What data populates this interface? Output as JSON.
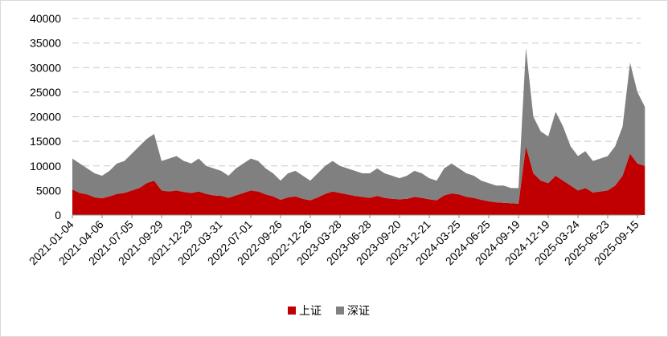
{
  "chart_data": {
    "type": "stacked-area",
    "categories": [
      "2021-01-04",
      null,
      null,
      null,
      "2021-04-06",
      null,
      null,
      null,
      "2021-07-05",
      null,
      null,
      null,
      "2021-09-29",
      null,
      null,
      null,
      "2021-12-29",
      null,
      null,
      null,
      "2022-03-31",
      null,
      null,
      null,
      "2022-07-01",
      null,
      null,
      null,
      "2022-09-26",
      null,
      null,
      null,
      "2022-12-26",
      null,
      null,
      null,
      "2023-03-28",
      null,
      null,
      null,
      "2023-06-28",
      null,
      null,
      null,
      "2023-09-20",
      null,
      null,
      null,
      "2023-12-21",
      null,
      null,
      null,
      "2024-03-25",
      null,
      null,
      null,
      "2024-06-25",
      null,
      null,
      null,
      "2024-09-19",
      null,
      null,
      null,
      "2024-12-19",
      null,
      null,
      null,
      "2025-03-24",
      null,
      null,
      null,
      "2025-06-23",
      null,
      null,
      null,
      "2025-09-15",
      null
    ],
    "series": [
      {
        "name": "上证",
        "color": "#c00000",
        "values": [
          5200,
          4500,
          4200,
          3600,
          3400,
          3800,
          4300,
          4500,
          5000,
          5500,
          6500,
          7000,
          5000,
          4800,
          5000,
          4700,
          4500,
          4800,
          4300,
          4000,
          3900,
          3500,
          4000,
          4500,
          5000,
          4800,
          4200,
          3800,
          3100,
          3600,
          3800,
          3300,
          3000,
          3600,
          4300,
          4800,
          4500,
          4200,
          3900,
          3700,
          3500,
          3900,
          3500,
          3300,
          3200,
          3300,
          3700,
          3500,
          3200,
          3000,
          4000,
          4400,
          4200,
          3700,
          3500,
          3100,
          2800,
          2600,
          2500,
          2400,
          2300,
          14000,
          8500,
          7000,
          6500,
          8000,
          7000,
          6000,
          5000,
          5500,
          4600,
          4800,
          5000,
          6000,
          8000,
          12500,
          10500,
          10000
        ]
      },
      {
        "name": "深证",
        "color": "#808080",
        "values": [
          6300,
          6000,
          5300,
          4900,
          4600,
          5200,
          6200,
          6500,
          7500,
          8500,
          9000,
          9500,
          6000,
          6700,
          7000,
          6300,
          6000,
          6700,
          5700,
          5500,
          5100,
          4500,
          5500,
          6000,
          6500,
          6200,
          5300,
          4700,
          3900,
          4900,
          5200,
          4700,
          4000,
          4900,
          5700,
          6200,
          5500,
          5300,
          5100,
          4800,
          5000,
          5600,
          5000,
          4700,
          4300,
          4700,
          5300,
          5000,
          4300,
          4000,
          5500,
          6100,
          5300,
          4800,
          4500,
          3900,
          3700,
          3400,
          3500,
          3100,
          3200,
          20000,
          11500,
          10000,
          9500,
          13000,
          11000,
          8000,
          7000,
          7500,
          6400,
          6700,
          7000,
          8000,
          10000,
          18500,
          14500,
          12000
        ]
      }
    ],
    "ylim": [
      0,
      40000
    ],
    "yticks": [
      0,
      5000,
      10000,
      15000,
      20000,
      25000,
      30000,
      35000,
      40000
    ],
    "grid": true,
    "legend": "bottom"
  }
}
